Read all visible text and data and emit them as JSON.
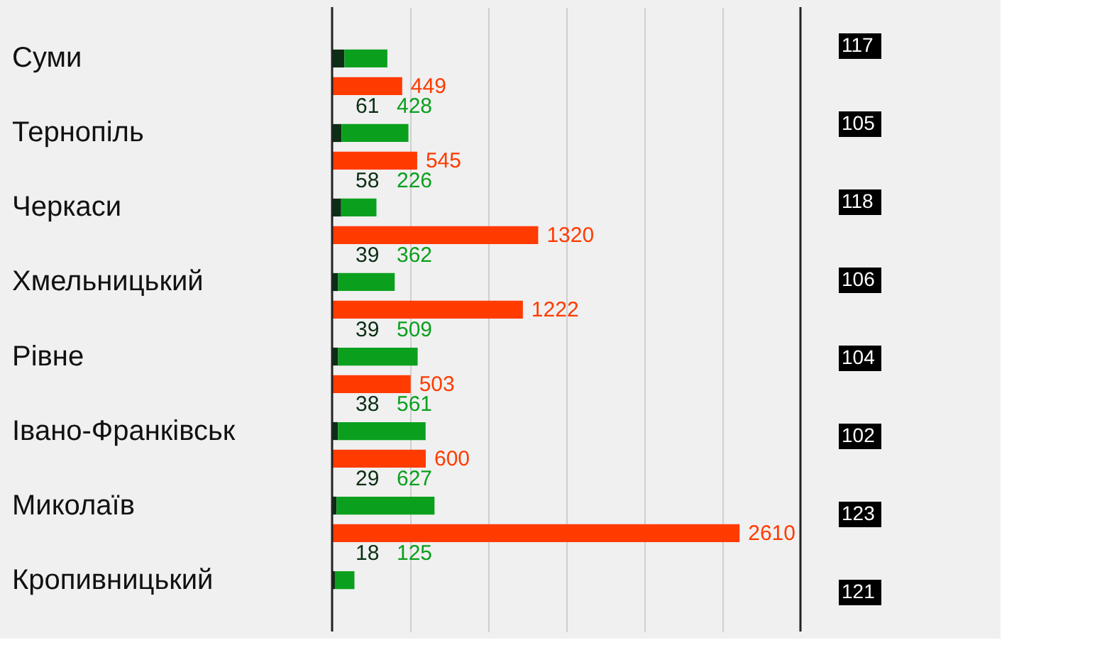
{
  "chart_data": [
    {
      "type": "bar",
      "orientation": "horizontal",
      "stacked": true,
      "categories": [
        "Суми",
        "Тернопіль",
        "Черкаси",
        "Хмельницький",
        "Рівне",
        "Івано-Франківськ",
        "Миколаїв",
        "Кропивницький"
      ],
      "series": [
        {
          "color": "#0b2e14",
          "values": [
            79,
            61,
            58,
            39,
            39,
            38,
            29,
            18
          ],
          "value_labels": [
            null,
            "61",
            "58",
            "39",
            "39",
            "38",
            "29",
            "18"
          ]
        },
        {
          "color": "#0aa01e",
          "values": [
            275,
            428,
            226,
            362,
            509,
            561,
            627,
            125
          ],
          "value_labels": [
            null,
            "428",
            "226",
            "362",
            "509",
            "561",
            "627",
            "125"
          ]
        }
      ],
      "xlim": [
        0,
        3000
      ],
      "xticks": [
        {
          "value": 500,
          "label": null
        },
        {
          "value": 1000,
          "label": null
        },
        {
          "value": 1500,
          "label": null
        },
        {
          "value": 2000,
          "label": null
        },
        {
          "value": 2500,
          "label": null
        }
      ],
      "grid": "x",
      "tick_labels": "y"
    },
    {
      "type": "bar",
      "orientation": "horizontal",
      "categories": [
        null,
        null,
        null,
        null,
        null,
        null,
        null,
        null
      ],
      "series": [
        {
          "color": "#ff3b00",
          "values": [
            449,
            545,
            1320,
            1222,
            503,
            600,
            2610,
            null
          ],
          "value_labels": [
            "449",
            "545",
            "1320",
            "1222",
            "503",
            "600",
            "2610",
            null
          ]
        }
      ]
    },
    {
      "type": "other",
      "categories": [
        null,
        null,
        null,
        null,
        null,
        null,
        null,
        null
      ],
      "values": [
        117,
        105,
        118,
        106,
        104,
        102,
        123,
        121
      ],
      "data_labels": true
    }
  ]
}
